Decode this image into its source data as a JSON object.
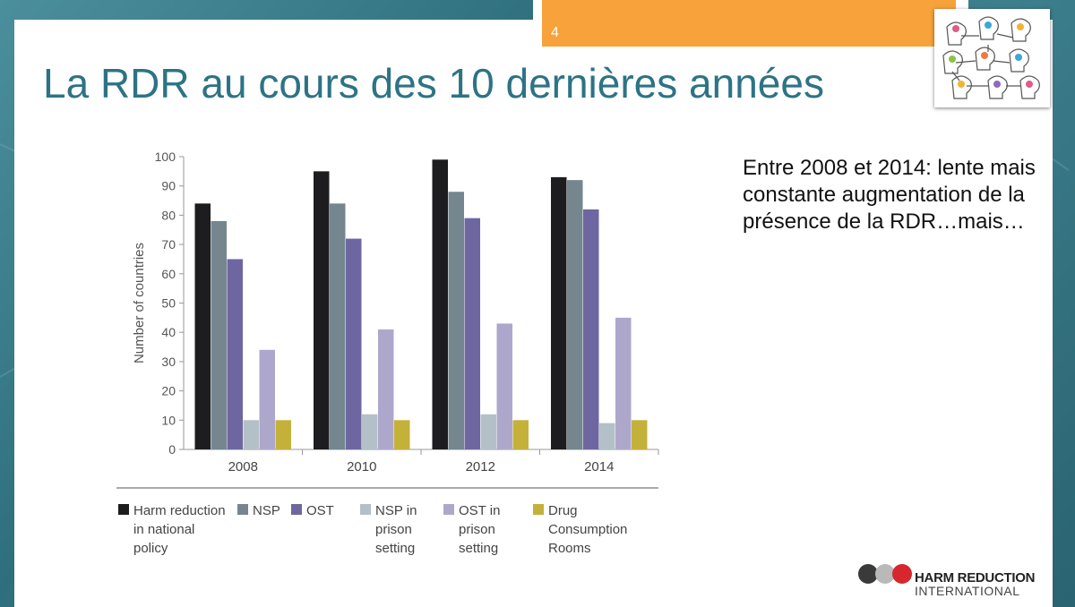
{
  "slide": {
    "page_number": "4",
    "title": "La RDR au cours des 10 dernières années",
    "side_text": "Entre 2008 et 2014: lente mais constante augmentation de la présence de la RDR…mais…"
  },
  "logo": {
    "line1": "HARM REDUCTION",
    "line2": "INTERNATIONAL"
  },
  "chart_data": {
    "type": "bar",
    "ylabel": "Number of countries",
    "xlabel": "",
    "ylim": [
      0,
      100
    ],
    "yticks": [
      0,
      10,
      20,
      30,
      40,
      50,
      60,
      70,
      80,
      90,
      100
    ],
    "categories": [
      "2008",
      "2010",
      "2012",
      "2014"
    ],
    "series": [
      {
        "name": "Harm reduction in national policy",
        "legend_lines": [
          "Harm reduction",
          "in national",
          "policy"
        ],
        "color": "#1d1d1f",
        "values": [
          84,
          95,
          99,
          93
        ]
      },
      {
        "name": "NSP",
        "legend_lines": [
          "NSP"
        ],
        "color": "#75868f",
        "values": [
          78,
          84,
          88,
          92
        ]
      },
      {
        "name": "OST",
        "legend_lines": [
          "OST"
        ],
        "color": "#6e66a1",
        "values": [
          65,
          72,
          79,
          82
        ]
      },
      {
        "name": "NSP in prison setting",
        "legend_lines": [
          "NSP in",
          "prison",
          "setting"
        ],
        "color": "#b4c0c8",
        "values": [
          10,
          12,
          12,
          9
        ]
      },
      {
        "name": "OST in prison setting",
        "legend_lines": [
          "OST in",
          "prison",
          "setting"
        ],
        "color": "#aea7cc",
        "values": [
          34,
          41,
          43,
          45
        ]
      },
      {
        "name": "Drug Consumption Rooms",
        "legend_lines": [
          "Drug",
          "Consumption",
          "Rooms"
        ],
        "color": "#c4b13a",
        "values": [
          10,
          10,
          10,
          10
        ]
      }
    ],
    "legend_position": "bottom",
    "grid": false
  }
}
